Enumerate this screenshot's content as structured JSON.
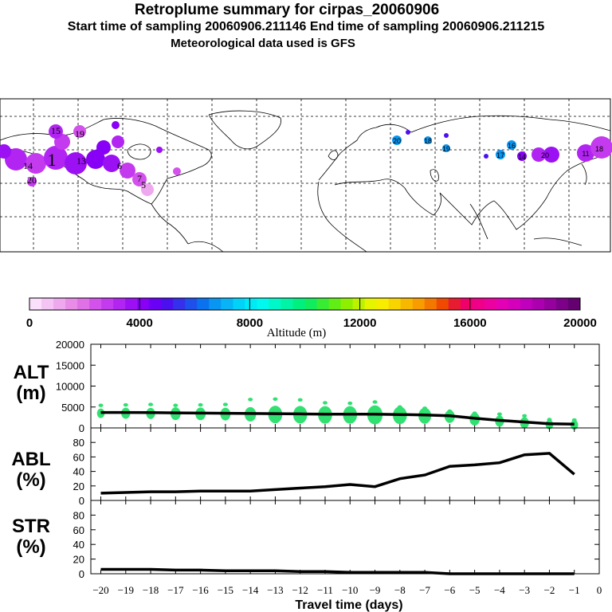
{
  "header": {
    "title": "Retroplume summary for cirpas_20060906",
    "sampling_line": "Start time of sampling 20060906.211146     End time of sampling 20060906.211215",
    "met_line": "Meteorological data used is GFS"
  },
  "map": {
    "plume_labels_west": [
      "15",
      "19",
      "14",
      "1",
      "13",
      "20",
      "6",
      "7",
      "5"
    ],
    "plume_labels_east": [
      "20",
      "18",
      "19",
      "17",
      "16",
      "14",
      "20",
      "11",
      "18"
    ]
  },
  "colorbar": {
    "label": "Altitude (m)",
    "tick_labels": [
      "0",
      "4000",
      "8000",
      "12000",
      "16000",
      "20000"
    ],
    "colors": [
      "#fbe0fb",
      "#f4c4f4",
      "#eea8ee",
      "#e88ce8",
      "#e070e6",
      "#d452ec",
      "#c43aee",
      "#b224f2",
      "#9c10f4",
      "#8800f6",
      "#6a00f6",
      "#4c10f0",
      "#3430ec",
      "#1e50ec",
      "#0a72ee",
      "#0896f2",
      "#08b4f6",
      "#00d2f8",
      "#00eaf6",
      "#00f8ee",
      "#00f8c8",
      "#00f4a4",
      "#00f080",
      "#10ec5c",
      "#38ec34",
      "#60ee14",
      "#8ef000",
      "#bcf200",
      "#e6f400",
      "#f8ec00",
      "#f8d400",
      "#f8b800",
      "#f89c00",
      "#f47800",
      "#f04a00",
      "#e81c30",
      "#f0006a",
      "#f00088",
      "#ec00a0",
      "#e400b4",
      "#d400bc",
      "#c000bc",
      "#ac00b0",
      "#96009e",
      "#7c0088",
      "#640070"
    ]
  },
  "chart_data": [
    {
      "type": "line",
      "panel": "ALT",
      "ylabel_title": "ALT\n(m)",
      "ylim": [
        0,
        20000
      ],
      "yticks": [
        0,
        5000,
        10000,
        15000,
        20000
      ],
      "x": [
        -20,
        -19,
        -18,
        -17,
        -16,
        -15,
        -14,
        -13,
        -12,
        -11,
        -10,
        -9,
        -8,
        -7,
        -6,
        -5,
        -4,
        -3,
        -2,
        -1
      ],
      "series": [
        {
          "name": "mean altitude",
          "values": [
            3700,
            3700,
            3650,
            3600,
            3550,
            3500,
            3450,
            3400,
            3350,
            3300,
            3300,
            3300,
            3200,
            3100,
            2900,
            2300,
            1800,
            1400,
            1000,
            900
          ]
        },
        {
          "name": "upper spread",
          "values": [
            5400,
            5500,
            5600,
            5400,
            5500,
            5600,
            6800,
            6900,
            6700,
            6000,
            5900,
            6200,
            5000,
            4700,
            4000,
            3500,
            3300,
            2900,
            2000,
            1900
          ]
        }
      ],
      "bubble_sizes": [
        6,
        7,
        7,
        8,
        8,
        8,
        9,
        11,
        11,
        11,
        11,
        12,
        11,
        10,
        8,
        8,
        7,
        7,
        6,
        6
      ]
    },
    {
      "type": "line",
      "panel": "ABL",
      "ylabel_title": "ABL\n(%)",
      "ylim": [
        0,
        100
      ],
      "yticks": [
        0,
        20,
        40,
        60,
        80
      ],
      "x": [
        -20,
        -19,
        -18,
        -17,
        -16,
        -15,
        -14,
        -13,
        -12,
        -11,
        -10,
        -9,
        -8,
        -7,
        -6,
        -5,
        -4,
        -3,
        -2,
        -1
      ],
      "series": [
        {
          "name": "ABL fraction",
          "values": [
            10,
            11,
            12,
            12,
            13,
            13,
            13,
            15,
            17,
            19,
            22,
            19,
            30,
            35,
            47,
            49,
            52,
            63,
            65,
            36
          ]
        }
      ]
    },
    {
      "type": "line",
      "panel": "STR",
      "ylabel_title": "STR\n(%)",
      "ylim": [
        0,
        100
      ],
      "yticks": [
        0,
        20,
        40,
        60,
        80
      ],
      "x": [
        -20,
        -19,
        -18,
        -17,
        -16,
        -15,
        -14,
        -13,
        -12,
        -11,
        -10,
        -9,
        -8,
        -7,
        -6,
        -5,
        -4,
        -3,
        -2,
        -1
      ],
      "series": [
        {
          "name": "stratospheric fraction",
          "values": [
            6,
            6,
            6,
            5,
            5,
            4,
            4,
            4,
            3,
            3,
            2,
            2,
            2,
            2,
            0,
            0,
            0,
            0,
            0,
            0
          ]
        }
      ],
      "xlabel": "Travel time (days)",
      "xticks": [
        -20,
        -19,
        -18,
        -17,
        -16,
        -15,
        -14,
        -13,
        -12,
        -11,
        -10,
        -9,
        -8,
        -7,
        -6,
        -5,
        -4,
        -3,
        -2,
        -1,
        0
      ],
      "xlim": [
        -20.4,
        0
      ]
    }
  ]
}
